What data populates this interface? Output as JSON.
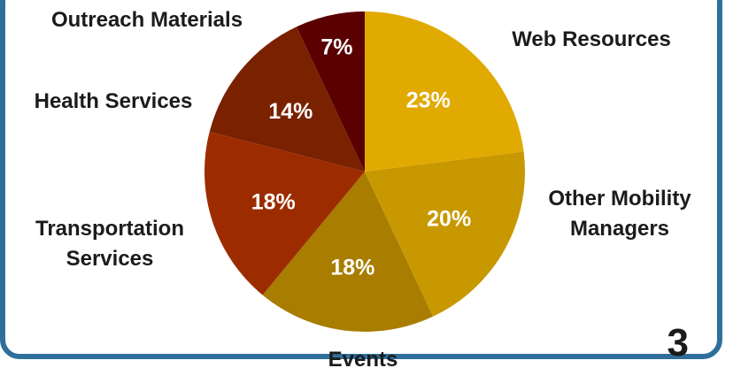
{
  "chart_data": {
    "type": "pie",
    "categories": [
      "Web Resources",
      "Other Mobility Managers",
      "Events",
      "Transportation Services",
      "Health Services",
      "Outreach Materials"
    ],
    "values": [
      23,
      20,
      18,
      18,
      14,
      7
    ],
    "value_labels": [
      "23%",
      "20%",
      "18%",
      "18%",
      "14%",
      "7%"
    ],
    "outer_labels": [
      [
        "Web Resources"
      ],
      [
        "Other Mobility",
        "Managers"
      ],
      [
        "Events"
      ],
      [
        "Transportation",
        "Services"
      ],
      [
        "Health Services"
      ],
      [
        "Outreach Materials"
      ]
    ],
    "colors": [
      "#e0aa00",
      "#c89800",
      "#a87d00",
      "#9c2c00",
      "#7a2100",
      "#5a0000"
    ],
    "start_angle": "12 o'clock",
    "direction": "clockwise",
    "legend": "none"
  },
  "page_number": "3",
  "frame_color": "#2f6f9b"
}
